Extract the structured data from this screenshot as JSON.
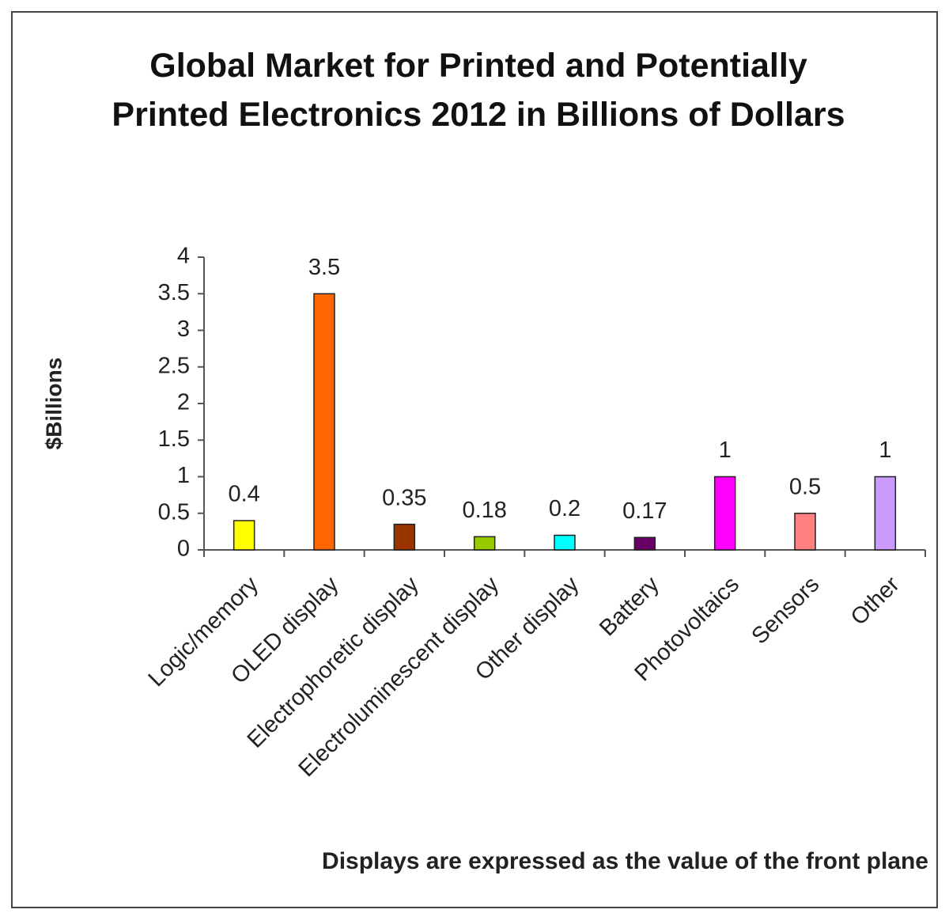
{
  "chart_data": {
    "type": "bar",
    "title": "Global Market for Printed and Potentially Printed Electronics 2012 in Billions of Dollars",
    "y_label": "$Billions",
    "annotation": "Displays are expressed as the value of the front plane",
    "categories": [
      "Logic/memory",
      "OLED display",
      "Electrophoretic display",
      "Electroluminescent display",
      "Other display",
      "Battery",
      "Photovoltaics",
      "Sensors",
      "Other"
    ],
    "values": [
      0.4,
      3.5,
      0.35,
      0.18,
      0.2,
      0.17,
      1,
      0.5,
      1
    ],
    "colors": [
      "#ffff00",
      "#ff6600",
      "#993300",
      "#99cc00",
      "#00ffff",
      "#660066",
      "#ff00ff",
      "#ff8080",
      "#cc99ff"
    ],
    "ylim": [
      0,
      4
    ],
    "yticks": [
      0,
      0.5,
      1,
      1.5,
      2,
      2.5,
      3,
      3.5,
      4
    ],
    "grid": false
  }
}
